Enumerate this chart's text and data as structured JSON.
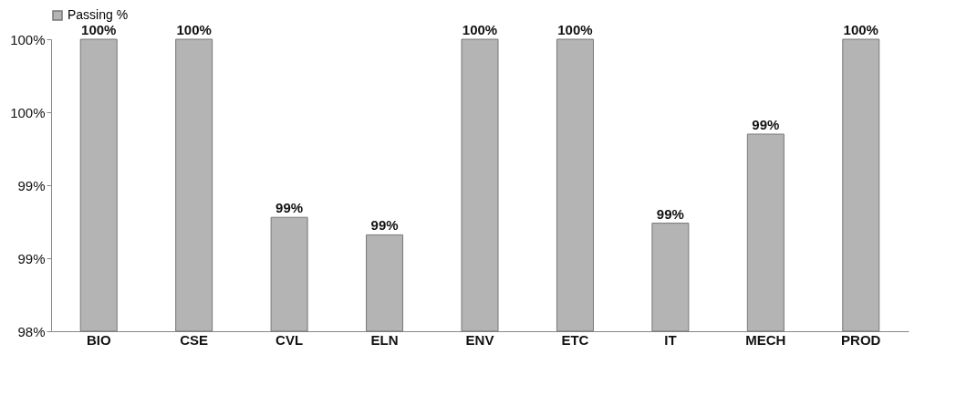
{
  "chart_data": {
    "type": "bar",
    "categories": [
      "BIO",
      "CSE",
      "CVL",
      "ELN",
      "ENV",
      "ETC",
      "IT",
      "MECH",
      "PROD"
    ],
    "series": [
      {
        "name": "Passing %",
        "color": "#b4b4b4",
        "values": [
          100,
          100,
          98.78,
          98.66,
          100,
          100,
          98.74,
          99.35,
          100
        ],
        "value_labels": [
          "100%",
          "100%",
          "99%",
          "99%",
          "100%",
          "100%",
          "99%",
          "99%",
          "100%"
        ]
      }
    ],
    "ylim": [
      98,
      100
    ],
    "yticks": [
      {
        "value": 98,
        "label": "98%"
      },
      {
        "value": 98.5,
        "label": "99%"
      },
      {
        "value": 99,
        "label": "99%"
      },
      {
        "value": 99.5,
        "label": "100%"
      },
      {
        "value": 100,
        "label": "100%"
      }
    ],
    "grid": false,
    "legend": "top"
  }
}
